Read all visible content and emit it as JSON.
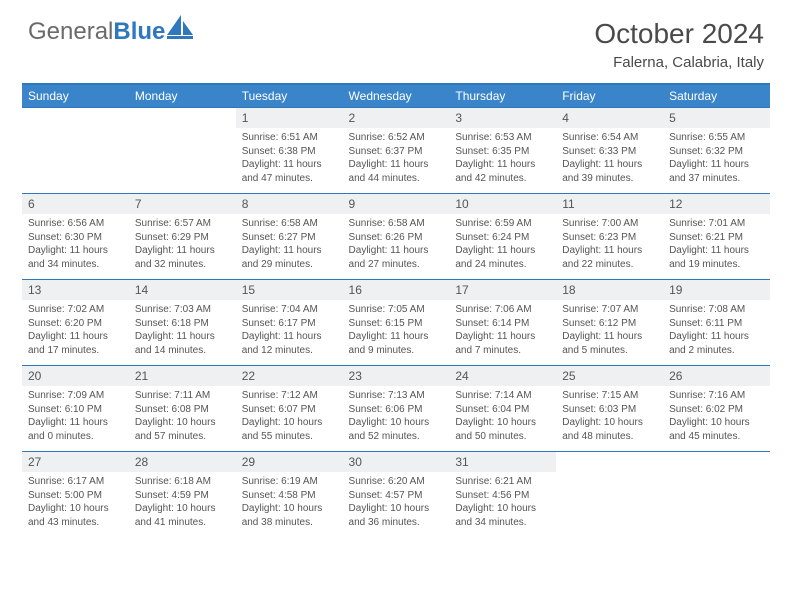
{
  "brand": {
    "text_part1": "General",
    "text_part2": "Blue",
    "shape_color": "#2f78bd",
    "text_color_gray": "#6a6a6a"
  },
  "header": {
    "title": "October 2024",
    "location": "Falerna, Calabria, Italy"
  },
  "colors": {
    "header_bg": "#3a85c9",
    "divider": "#2f78bd",
    "daynum_bg": "#eef0f2",
    "text": "#555555"
  },
  "weekdays": [
    "Sunday",
    "Monday",
    "Tuesday",
    "Wednesday",
    "Thursday",
    "Friday",
    "Saturday"
  ],
  "weeks": [
    [
      null,
      null,
      {
        "n": "1",
        "sr": "6:51 AM",
        "ss": "6:38 PM",
        "dl": "11 hours and 47 minutes."
      },
      {
        "n": "2",
        "sr": "6:52 AM",
        "ss": "6:37 PM",
        "dl": "11 hours and 44 minutes."
      },
      {
        "n": "3",
        "sr": "6:53 AM",
        "ss": "6:35 PM",
        "dl": "11 hours and 42 minutes."
      },
      {
        "n": "4",
        "sr": "6:54 AM",
        "ss": "6:33 PM",
        "dl": "11 hours and 39 minutes."
      },
      {
        "n": "5",
        "sr": "6:55 AM",
        "ss": "6:32 PM",
        "dl": "11 hours and 37 minutes."
      }
    ],
    [
      {
        "n": "6",
        "sr": "6:56 AM",
        "ss": "6:30 PM",
        "dl": "11 hours and 34 minutes."
      },
      {
        "n": "7",
        "sr": "6:57 AM",
        "ss": "6:29 PM",
        "dl": "11 hours and 32 minutes."
      },
      {
        "n": "8",
        "sr": "6:58 AM",
        "ss": "6:27 PM",
        "dl": "11 hours and 29 minutes."
      },
      {
        "n": "9",
        "sr": "6:58 AM",
        "ss": "6:26 PM",
        "dl": "11 hours and 27 minutes."
      },
      {
        "n": "10",
        "sr": "6:59 AM",
        "ss": "6:24 PM",
        "dl": "11 hours and 24 minutes."
      },
      {
        "n": "11",
        "sr": "7:00 AM",
        "ss": "6:23 PM",
        "dl": "11 hours and 22 minutes."
      },
      {
        "n": "12",
        "sr": "7:01 AM",
        "ss": "6:21 PM",
        "dl": "11 hours and 19 minutes."
      }
    ],
    [
      {
        "n": "13",
        "sr": "7:02 AM",
        "ss": "6:20 PM",
        "dl": "11 hours and 17 minutes."
      },
      {
        "n": "14",
        "sr": "7:03 AM",
        "ss": "6:18 PM",
        "dl": "11 hours and 14 minutes."
      },
      {
        "n": "15",
        "sr": "7:04 AM",
        "ss": "6:17 PM",
        "dl": "11 hours and 12 minutes."
      },
      {
        "n": "16",
        "sr": "7:05 AM",
        "ss": "6:15 PM",
        "dl": "11 hours and 9 minutes."
      },
      {
        "n": "17",
        "sr": "7:06 AM",
        "ss": "6:14 PM",
        "dl": "11 hours and 7 minutes."
      },
      {
        "n": "18",
        "sr": "7:07 AM",
        "ss": "6:12 PM",
        "dl": "11 hours and 5 minutes."
      },
      {
        "n": "19",
        "sr": "7:08 AM",
        "ss": "6:11 PM",
        "dl": "11 hours and 2 minutes."
      }
    ],
    [
      {
        "n": "20",
        "sr": "7:09 AM",
        "ss": "6:10 PM",
        "dl": "11 hours and 0 minutes."
      },
      {
        "n": "21",
        "sr": "7:11 AM",
        "ss": "6:08 PM",
        "dl": "10 hours and 57 minutes."
      },
      {
        "n": "22",
        "sr": "7:12 AM",
        "ss": "6:07 PM",
        "dl": "10 hours and 55 minutes."
      },
      {
        "n": "23",
        "sr": "7:13 AM",
        "ss": "6:06 PM",
        "dl": "10 hours and 52 minutes."
      },
      {
        "n": "24",
        "sr": "7:14 AM",
        "ss": "6:04 PM",
        "dl": "10 hours and 50 minutes."
      },
      {
        "n": "25",
        "sr": "7:15 AM",
        "ss": "6:03 PM",
        "dl": "10 hours and 48 minutes."
      },
      {
        "n": "26",
        "sr": "7:16 AM",
        "ss": "6:02 PM",
        "dl": "10 hours and 45 minutes."
      }
    ],
    [
      {
        "n": "27",
        "sr": "6:17 AM",
        "ss": "5:00 PM",
        "dl": "10 hours and 43 minutes."
      },
      {
        "n": "28",
        "sr": "6:18 AM",
        "ss": "4:59 PM",
        "dl": "10 hours and 41 minutes."
      },
      {
        "n": "29",
        "sr": "6:19 AM",
        "ss": "4:58 PM",
        "dl": "10 hours and 38 minutes."
      },
      {
        "n": "30",
        "sr": "6:20 AM",
        "ss": "4:57 PM",
        "dl": "10 hours and 36 minutes."
      },
      {
        "n": "31",
        "sr": "6:21 AM",
        "ss": "4:56 PM",
        "dl": "10 hours and 34 minutes."
      },
      null,
      null
    ]
  ],
  "labels": {
    "sunrise": "Sunrise:",
    "sunset": "Sunset:",
    "daylight": "Daylight:"
  }
}
